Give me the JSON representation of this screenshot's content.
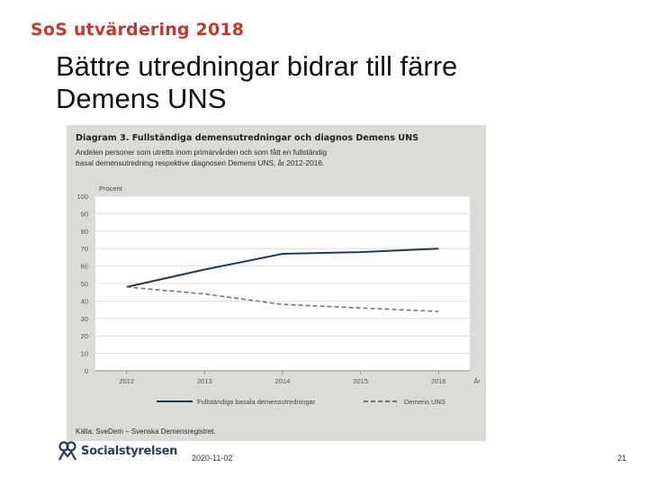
{
  "header": {
    "label": "SoS utvärdering 2018",
    "brand_color": "#c0392b"
  },
  "slide": {
    "title_line1": "Bättre utredningar bidrar till färre",
    "title_line2": "Demens UNS"
  },
  "chart_data": {
    "type": "line",
    "title": "Diagram 3. Fullständiga demensutredningar och diagnos Demens UNS",
    "subtitle": "Andelen personer som utretts inom primärvården och som fått en fullständig basal demensutredning respektive diagnosen Demens UNS, år 2012-2016.",
    "ylabel": "Procent",
    "xlabel": "År",
    "x": [
      2012,
      2013,
      2014,
      2015,
      2016
    ],
    "ylim": [
      0,
      100
    ],
    "yticks": [
      0,
      10,
      20,
      30,
      40,
      50,
      60,
      70,
      80,
      90,
      100
    ],
    "grid": true,
    "legend_position": "bottom",
    "series": [
      {
        "name": "Fullständiga basala demensutredningar",
        "values": [
          48,
          58,
          67,
          68,
          70
        ],
        "color": "#1f3a56",
        "style": "solid"
      },
      {
        "name": "Demens UNS",
        "values": [
          48,
          44,
          38,
          36,
          34
        ],
        "color": "#7a7570",
        "style": "dashed"
      }
    ],
    "source": "Källa: SveDem – Svenska Demensregistret."
  },
  "footer": {
    "logo_text": "Socialstyrelsen",
    "date": "2020-11-02",
    "page": "21"
  },
  "icons": {
    "logo": "socialstyrelsen-logo-icon"
  }
}
